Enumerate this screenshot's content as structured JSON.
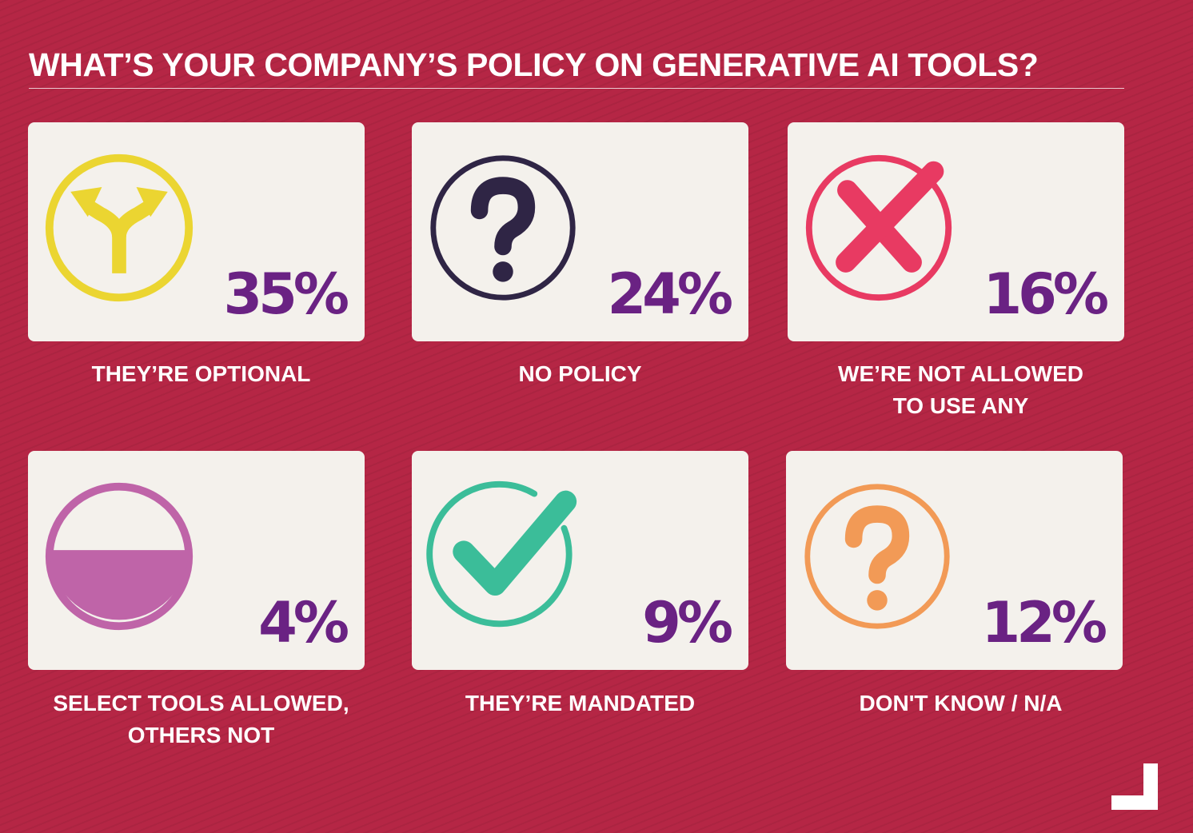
{
  "title": "WHAT’S YOUR COMPANY’S POLICY ON GENERATIVE AI TOOLS?",
  "colors": {
    "background": "#b52645",
    "card": "#f4f1ec",
    "percent": "#6a2283",
    "optional": "#ebd531",
    "no_policy": "#2f2545",
    "not_allowed": "#e83a62",
    "select_tools": "#bf64a8",
    "mandated": "#3bbd99",
    "dont_know": "#f29a56"
  },
  "chart_data": {
    "type": "table",
    "title": "WHAT’S YOUR COMPANY’S POLICY ON GENERATIVE AI TOOLS?",
    "categories": [
      "THEY’RE OPTIONAL",
      "NO POLICY",
      "WE’RE NOT ALLOWED TO USE ANY",
      "SELECT TOOLS ALLOWED, OTHERS NOT",
      "THEY’RE MANDATED",
      "DON'T KNOW / N/A"
    ],
    "values": [
      35,
      24,
      16,
      4,
      9,
      12
    ],
    "unit": "%"
  },
  "cards": [
    {
      "percent": "35%",
      "label_lines": [
        "THEY’RE OPTIONAL"
      ],
      "icon": "split-arrows-icon"
    },
    {
      "percent": "24%",
      "label_lines": [
        "NO POLICY"
      ],
      "icon": "question-mark-icon"
    },
    {
      "percent": "16%",
      "label_lines": [
        "WE’RE NOT ALLOWED",
        "TO USE ANY"
      ],
      "icon": "x-mark-icon"
    },
    {
      "percent": "4%",
      "label_lines": [
        "SELECT TOOLS ALLOWED,",
        "OTHERS NOT"
      ],
      "icon": "half-filled-circle-icon"
    },
    {
      "percent": "9%",
      "label_lines": [
        "THEY’RE MANDATED"
      ],
      "icon": "checkmark-icon"
    },
    {
      "percent": "12%",
      "label_lines": [
        "DON'T KNOW / N/A"
      ],
      "icon": "question-mark-icon"
    }
  ]
}
